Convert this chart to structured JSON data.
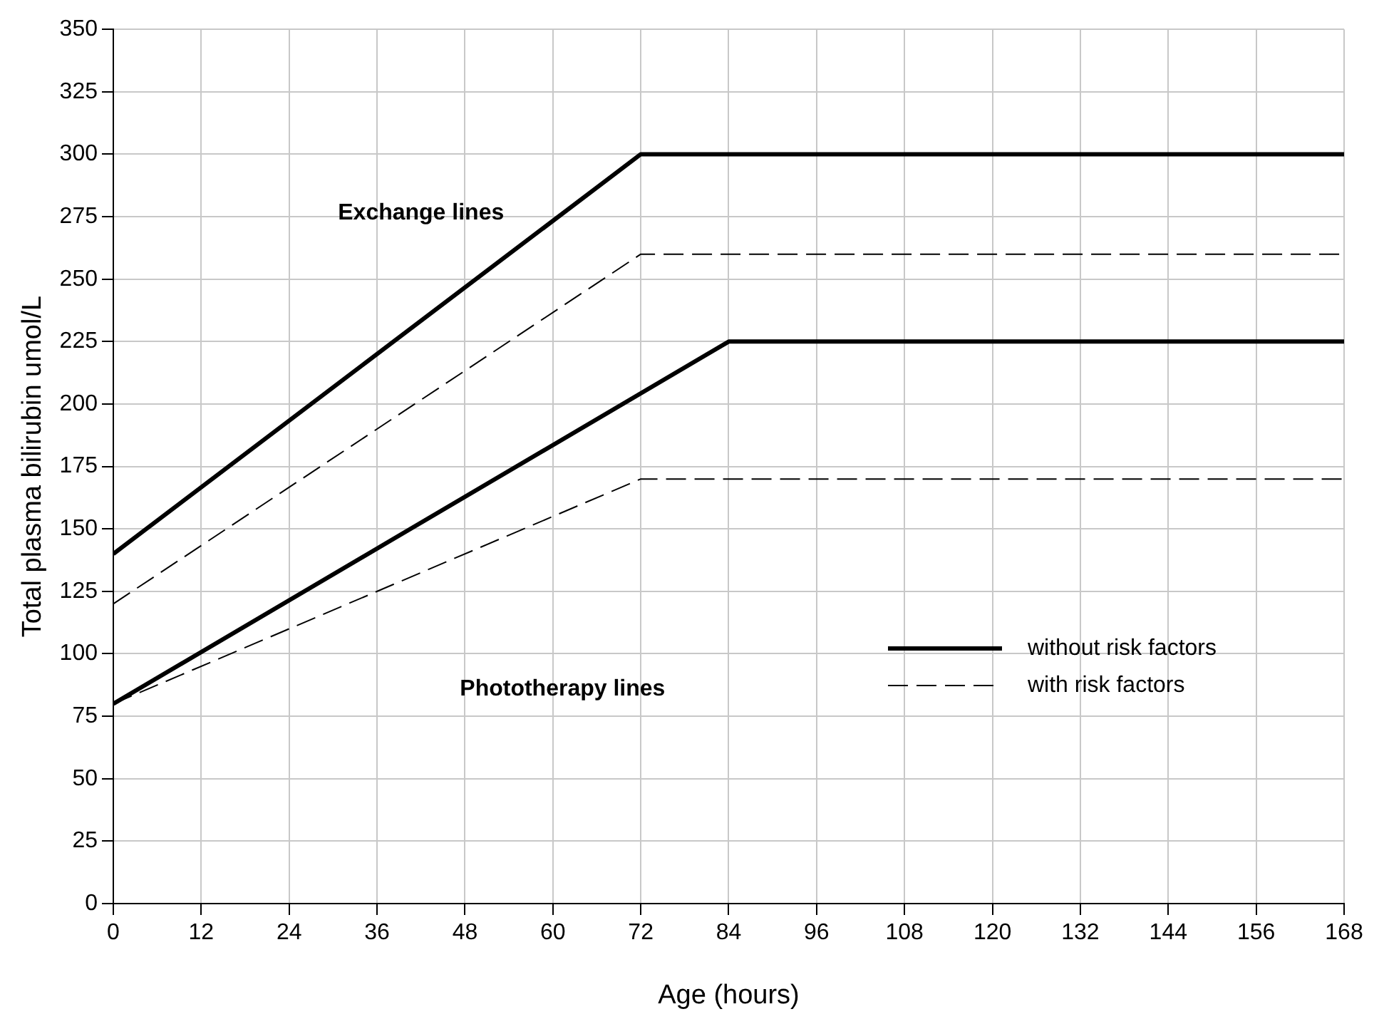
{
  "chart_data": {
    "type": "line",
    "xlabel": "Age (hours)",
    "ylabel": "Total plasma bilirubin umol/L",
    "xlim": [
      0,
      168
    ],
    "xticks": [
      0,
      12,
      24,
      36,
      48,
      60,
      72,
      84,
      96,
      108,
      120,
      132,
      144,
      156,
      168
    ],
    "ylim": [
      0,
      350
    ],
    "yticks": [
      0,
      25,
      50,
      75,
      100,
      125,
      150,
      175,
      200,
      225,
      250,
      275,
      300,
      325,
      350
    ],
    "grid": true,
    "legend": "bottom right",
    "marker": "none",
    "series": [
      {
        "name": "without risk factors",
        "color": "#000000",
        "line_style": "solid",
        "x": [
          0,
          72,
          168
        ],
        "values": [
          140,
          300,
          300
        ]
      },
      {
        "name": "with risk factors",
        "color": "#000000",
        "line_style": "dashed",
        "x": [
          0,
          72,
          168
        ],
        "values": [
          120,
          260,
          260
        ]
      },
      {
        "color": "#000000",
        "line_style": "solid",
        "x": [
          0,
          84,
          168
        ],
        "values": [
          80,
          225,
          225
        ]
      },
      {
        "color": "#000000",
        "line_style": "dashed",
        "x": [
          0,
          72,
          168
        ],
        "values": [
          80,
          170,
          170
        ]
      }
    ],
    "annotations": [
      "Exchange lines",
      "Phototherapy lines"
    ]
  }
}
